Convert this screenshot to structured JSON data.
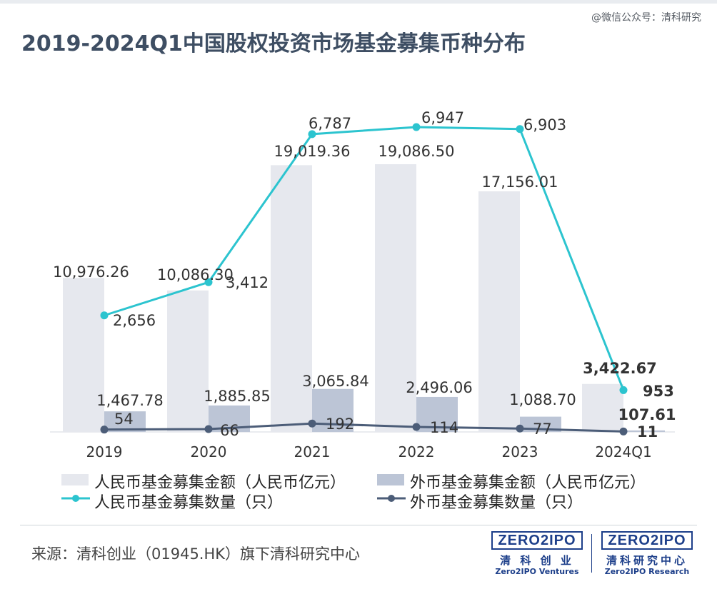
{
  "watermark": "@微信公众号：清科研究",
  "title": "2019-2024Q1中国股权投资市场基金募集币种分布",
  "source": "来源：清科创业（01945.HK）旗下清科研究中心",
  "logos": [
    {
      "badge": "ZERO2IPO",
      "cn": "清 科 创 业",
      "en": "Zero2IPO Ventures"
    },
    {
      "badge": "ZERO2IPO",
      "cn": "清科研究中心",
      "en": "Zero2IPO Research"
    }
  ],
  "colors": {
    "rmb_amount_bar": "#e6e8ee",
    "fx_amount_bar": "#bcc5d6",
    "rmb_count_line": "#2cc4cf",
    "fx_count_line": "#4c5d78",
    "title": "#3e4e63"
  },
  "chart_data": {
    "type": "bar+line",
    "categories": [
      "2019",
      "2020",
      "2021",
      "2022",
      "2023",
      "2024Q1"
    ],
    "series": [
      {
        "name": "人民币基金募集金额（人民币亿元）",
        "kind": "bar",
        "axis": "left",
        "values": [
          10976.26,
          10086.3,
          19019.36,
          19086.5,
          17156.01,
          3422.67
        ],
        "labels": [
          "10,976.26",
          "10,086.30",
          "19,019.36",
          "19,086.50",
          "17,156.01",
          "3,422.67"
        ]
      },
      {
        "name": "外币基金募集金额（人民币亿元）",
        "kind": "bar",
        "axis": "left",
        "values": [
          1467.78,
          1885.85,
          3065.84,
          2496.06,
          1088.7,
          107.61
        ],
        "labels": [
          "1,467.78",
          "1,885.85",
          "3,065.84",
          "2,496.06",
          "1,088.70",
          "107.61"
        ]
      },
      {
        "name": "人民币基金募集数量（只）",
        "kind": "line",
        "axis": "right",
        "values": [
          2656,
          3412,
          6787,
          6947,
          6903,
          953
        ],
        "labels": [
          "2,656",
          "3,412",
          "6,787",
          "6,947",
          "6,903",
          "953"
        ]
      },
      {
        "name": "外币基金募集数量（只）",
        "kind": "line",
        "axis": "right",
        "values": [
          54,
          66,
          192,
          114,
          77,
          11
        ],
        "labels": [
          "54",
          "66",
          "192",
          "114",
          "77",
          "11"
        ]
      }
    ],
    "legend_position": "bottom",
    "grid": false
  }
}
